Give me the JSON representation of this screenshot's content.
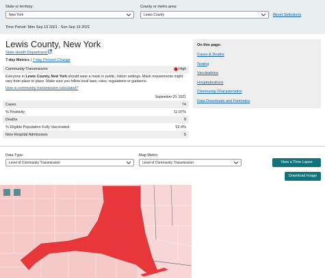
{
  "filters": {
    "state_label": "State or territory:",
    "state_value": "New York",
    "county_label": "County or metro area:",
    "county_value": "Lewis County",
    "reset": "Reset Selections",
    "time_period": "Time Period: Mon Sep 13 2021 - Sun Sep 19 2021"
  },
  "header": {
    "title": "Lewis County, New York",
    "health_link": "State Health Department"
  },
  "metrics_tabs": {
    "active": "7-day Metrics",
    "separator": "|",
    "link": "7-day Percent Change"
  },
  "transmission": {
    "label": "Community Transmission",
    "level": "High",
    "message": [
      "Everyone in ",
      "Lewis County, New York",
      " should wear a mask in public, indoor settings. Mask requirements might vary from place to place. Make sure you follow local laws, rules, regulations or guidance."
    ],
    "how_link": "How is community transmission calculated?"
  },
  "table": {
    "date": "September 20, 2021",
    "rows": [
      [
        "Cases",
        "74"
      ],
      [
        "% Positivity",
        "11.07%"
      ],
      [
        "Deaths",
        "0"
      ],
      [
        "% Eligible Population Fully Vaccinated",
        "52.4%"
      ],
      [
        "New Hospital Admissions",
        "5"
      ]
    ]
  },
  "on_this_page": {
    "title": "On this page:",
    "links": [
      "Cases & Deaths",
      "Testing",
      "Vaccinations",
      "Hospitalizations",
      "Community Characteristics",
      "Data Downloads and Footnotes"
    ]
  },
  "map_controls": {
    "data_type_label": "Data Type:",
    "data_type_value": "Level of Community Transmission",
    "metric_label": "Map Metric:",
    "metric_value": "Level of Community Transmission",
    "time_lapse": "View a Time Lapse",
    "download": "Download Image"
  }
}
